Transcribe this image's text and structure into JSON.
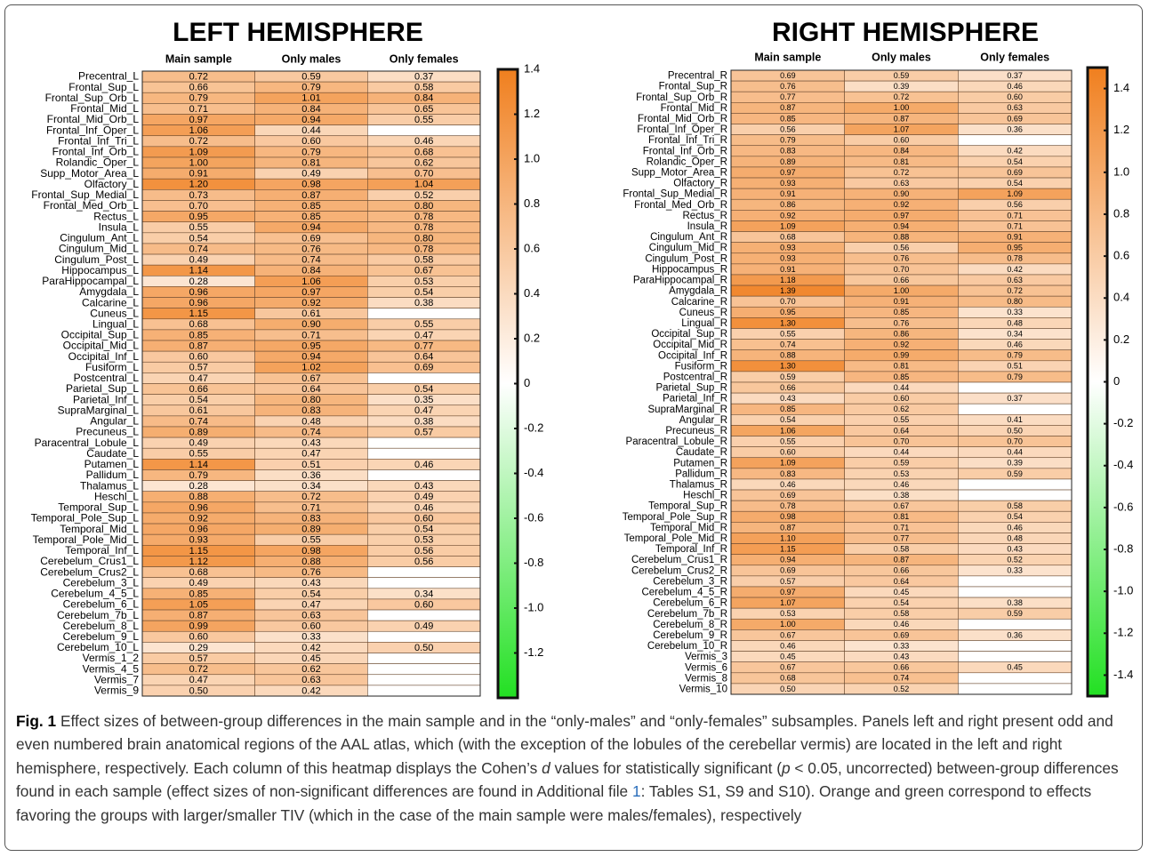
{
  "chart_data": [
    {
      "type": "heatmap",
      "title": "LEFT HEMISPHERE",
      "rows": [
        "Precentral_L",
        "Frontal_Sup_L",
        "Frontal_Sup_Orb_L",
        "Frontal_Mid_L",
        "Frontal_Mid_Orb_L",
        "Frontal_Inf_Oper_L",
        "Frontal_Inf_Tri_L",
        "Frontal_Inf_Orb_L",
        "Rolandic_Oper_L",
        "Supp_Motor_Area_L",
        "Olfactory_L",
        "Frontal_Sup_Medial_L",
        "Frontal_Med_Orb_L",
        "Rectus_L",
        "Insula_L",
        "Cingulum_Ant_L",
        "Cingulum_Mid_L",
        "Cingulum_Post_L",
        "Hippocampus_L",
        "ParaHippocampal_L",
        "Amygdala_L",
        "Calcarine_L",
        "Cuneus_L",
        "Lingual_L",
        "Occipital_Sup_L",
        "Occipital_Mid_L",
        "Occipital_Inf_L",
        "Fusiform_L",
        "Postcentral_L",
        "Parietal_Sup_L",
        "Parietal_Inf_L",
        "SupraMarginal_L",
        "Angular_L",
        "Precuneus_L",
        "Paracentral_Lobule_L",
        "Caudate_L",
        "Putamen_L",
        "Pallidum_L",
        "Thalamus_L",
        "Heschl_L",
        "Temporal_Sup_L",
        "Temporal_Pole_Sup_L",
        "Temporal_Mid_L",
        "Temporal_Pole_Mid_L",
        "Temporal_Inf_L",
        "Cerebelum_Crus1_L",
        "Cerebelum_Crus2_L",
        "Cerebelum_3_L",
        "Cerebelum_4_5_L",
        "Cerebelum_6_L",
        "Cerebelum_7b_L",
        "Cerebelum_8_L",
        "Cerebelum_9_L",
        "Cerebelum_10_L",
        "Vermis_1_2",
        "Vermis_4_5",
        "Vermis_7",
        "Vermis_9"
      ],
      "series": [
        {
          "name": "Main sample",
          "values": [
            0.72,
            0.66,
            0.79,
            0.71,
            0.97,
            1.06,
            0.72,
            1.09,
            1.0,
            0.91,
            1.2,
            0.73,
            0.7,
            0.95,
            0.55,
            0.54,
            0.74,
            0.49,
            1.14,
            0.28,
            0.96,
            0.96,
            1.15,
            0.68,
            0.85,
            0.87,
            0.6,
            0.57,
            0.47,
            0.66,
            0.54,
            0.61,
            0.74,
            0.89,
            0.49,
            0.55,
            1.14,
            0.79,
            0.28,
            0.88,
            0.96,
            0.92,
            0.96,
            0.93,
            1.15,
            1.12,
            0.68,
            0.49,
            0.85,
            1.05,
            0.87,
            0.99,
            0.6,
            0.29,
            0.57,
            0.72,
            0.47,
            0.5
          ],
          "value_labels": [
            "0.72",
            "0.66",
            "0.79",
            "0.71",
            "0.97",
            "1.06",
            "0.72",
            "1.09",
            "1.00",
            "0.91",
            "1.20",
            "0.73",
            "0.70",
            "0.95",
            "0.55",
            "0.54",
            "0.74",
            "0.49",
            "1.14",
            "0.28",
            "0.96",
            "0.96",
            "1.15",
            "0.68",
            "0.85",
            "0.87",
            "0.60",
            "0.57",
            "0.47",
            "0.66",
            "0.54",
            "0.61",
            "0.74",
            "0.89",
            "0.49",
            "0.55",
            "1.14",
            "0.79",
            "0.28",
            "0.88",
            "0.96",
            "0.92",
            "0.96",
            "0.93",
            "1.15",
            "1.12",
            "0.68",
            "0.49",
            "0.85",
            "1.05",
            "0.87",
            "0.99",
            "0.60",
            "0.29",
            "0.57",
            "0.72",
            "0.47",
            "0.50"
          ]
        },
        {
          "name": "Only males",
          "values": [
            0.59,
            0.79,
            1.01,
            0.84,
            0.94,
            0.44,
            0.6,
            0.79,
            0.81,
            0.49,
            0.98,
            0.87,
            0.85,
            0.85,
            0.94,
            0.69,
            0.76,
            0.74,
            0.84,
            1.06,
            0.97,
            0.92,
            0.61,
            0.9,
            0.71,
            0.95,
            0.94,
            1.02,
            0.67,
            0.64,
            0.8,
            0.83,
            0.48,
            0.74,
            0.43,
            0.47,
            0.51,
            0.36,
            0.34,
            0.72,
            0.71,
            0.83,
            0.89,
            0.55,
            0.98,
            0.88,
            0.76,
            0.43,
            0.54,
            0.47,
            0.63,
            0.6,
            0.33,
            0.42,
            0.45,
            0.62,
            0.63,
            0.42
          ],
          "value_labels": [
            "0.59",
            "0.79",
            "1.01",
            "0.84",
            "0.94",
            "0.44",
            "0.60",
            "0.79",
            "0.81",
            "0.49",
            "0.98",
            "0.87",
            "0.85",
            "0.85",
            "0.94",
            "0.69",
            "0.76",
            "0.74",
            "0.84",
            "1.06",
            "0.97",
            "0.92",
            "0.61",
            "0.90",
            "0.71",
            "0.95",
            "0.94",
            "1.02",
            "0.67",
            "0.64",
            "0.80",
            "0.83",
            "0.48",
            "0.74",
            "0.43",
            "0.47",
            "0.51",
            "0.36",
            "0.34",
            "0.72",
            "0.71",
            "0.83",
            "0.89",
            "0.55",
            "0.98",
            "0.88",
            "0.76",
            "0.43",
            "0.54",
            "0.47",
            "0.63",
            "0.60",
            "0.33",
            "0.42",
            "0.45",
            "0.62",
            "0.63",
            "0.42"
          ]
        },
        {
          "name": "Only females",
          "values": [
            0.37,
            0.58,
            0.84,
            0.65,
            0.55,
            null,
            0.46,
            0.68,
            0.62,
            0.7,
            1.04,
            0.52,
            0.8,
            0.78,
            0.78,
            0.8,
            0.78,
            0.58,
            0.67,
            0.53,
            0.54,
            0.38,
            null,
            0.55,
            0.47,
            0.77,
            0.64,
            0.69,
            null,
            0.54,
            0.35,
            0.47,
            0.38,
            0.57,
            null,
            null,
            0.46,
            null,
            0.43,
            0.49,
            0.46,
            0.6,
            0.54,
            0.53,
            0.56,
            0.56,
            null,
            null,
            0.34,
            0.6,
            null,
            0.49,
            null,
            0.5,
            null,
            null,
            null,
            null
          ],
          "value_labels": [
            "0.37",
            "0.58",
            "0.84",
            "0.65",
            "0.55",
            null,
            "0.46",
            "0.68",
            "0.62",
            "0.70",
            "1.04",
            "0.52",
            "0.80",
            "0.78",
            "0.78",
            "0.80",
            "0.78",
            "0.58",
            "0.67",
            "0.53",
            "0.54",
            "0.38",
            null,
            "0.55",
            "0.47",
            "0.77",
            "0.64",
            "0.69",
            null,
            "0.54",
            "0.35",
            "0.47",
            "0.38",
            "0.57",
            null,
            null,
            "0.46",
            null,
            "0.43",
            "0.49",
            "0.46",
            "0.60",
            "0.54",
            "0.53",
            "0.56",
            "0.56",
            null,
            null,
            "0.34",
            "0.60",
            null,
            "0.49",
            null,
            "0.50",
            null,
            null,
            null,
            null
          ]
        }
      ],
      "clim": [
        -1.4,
        1.4
      ],
      "colorbar_ticks": [
        1.4,
        1.2,
        {
          "value": 1,
          "label": "1.0"
        },
        0.8,
        0.6,
        0.4,
        0.2,
        0,
        -0.2,
        -0.4,
        -0.6,
        -0.8,
        {
          "value": -1,
          "label": "-1.0"
        },
        -1.2
      ],
      "colormap": [
        "#22e022",
        "#ffffff",
        "#f07f1e"
      ]
    },
    {
      "type": "heatmap",
      "title": "RIGHT HEMISPHERE",
      "rows": [
        "Precentral_R",
        "Frontal_Sup_R",
        "Frontal_Sup_Orb_R",
        "Frontal_Mid_R",
        "Frontal_Mid_Orb_R",
        "Frontal_Inf_Oper_R",
        "Frontal_Inf_Tri_R",
        "Frontal_Inf_Orb_R",
        "Rolandic_Oper_R",
        "Supp_Motor_Area_R",
        "Olfactory_R",
        "Frontal_Sup_Medial_R",
        "Frontal_Med_Orb_R",
        "Rectus_R",
        "Insula_R",
        "Cingulum_Ant_R",
        "Cingulum_Mid_R",
        "Cingulum_Post_R",
        "Hippocampus_R",
        "ParaHippocampal_R",
        "Amygdala_R",
        "Calcarine_R",
        "Cuneus_R",
        "Lingual_R",
        "Occipital_Sup_R",
        "Occipital_Mid_R",
        "Occipital_Inf_R",
        "Fusiform_R",
        "Postcentral_R",
        "Parietal_Sup_R",
        "Parietal_Inf_R",
        "SupraMarginal_R",
        "Angular_R",
        "Precuneus_R",
        "Paracentral_Lobule_R",
        "Caudate_R",
        "Putamen_R",
        "Pallidum_R",
        "Thalamus_R",
        "Heschl_R",
        "Temporal_Sup_R",
        "Temporal_Pole_Sup_R",
        "Temporal_Mid_R",
        "Temporal_Pole_Mid_R",
        "Temporal_Inf_R",
        "Cerebelum_Crus1_R",
        "Cerebelum_Crus2_R",
        "Cerebelum_3_R",
        "Cerebelum_4_5_R",
        "Cerebelum_6_R",
        "Cerebelum_7b_R",
        "Cerebelum_8_R",
        "Cerebelum_9_R",
        "Cerebelum_10_R",
        "Vermis_3",
        "Vermis_6",
        "Vermis_8",
        "Vermis_10"
      ],
      "series": [
        {
          "name": "Main sample",
          "values": [
            0.69,
            0.76,
            0.77,
            0.87,
            0.85,
            0.56,
            0.79,
            0.83,
            0.89,
            0.97,
            0.93,
            0.91,
            0.86,
            0.92,
            1.09,
            0.68,
            0.93,
            0.93,
            0.91,
            1.18,
            1.39,
            0.7,
            0.95,
            1.3,
            0.55,
            0.74,
            0.88,
            1.3,
            0.59,
            0.66,
            0.43,
            0.85,
            0.54,
            1.06,
            0.55,
            0.6,
            1.09,
            0.83,
            0.46,
            0.69,
            0.78,
            0.98,
            0.87,
            1.1,
            1.15,
            0.94,
            0.69,
            0.57,
            0.97,
            1.07,
            0.53,
            1.0,
            0.67,
            0.46,
            0.45,
            0.67,
            0.68,
            0.5
          ],
          "value_labels": [
            "0.69",
            "0.76",
            "0.77",
            "0.87",
            "0.85",
            "0.56",
            "0.79",
            "0.83",
            "0.89",
            "0.97",
            "0.93",
            "0.91",
            "0.86",
            "0.92",
            "1.09",
            "0.68",
            "0.93",
            "0.93",
            "0.91",
            "1.18",
            "1.39",
            "0.70",
            "0.95",
            "1.30",
            "0.55",
            "0.74",
            "0.88",
            "1.30",
            "0.59",
            "0.66",
            "0.43",
            "0.85",
            "0.54",
            "1.06",
            "0.55",
            "0.60",
            "1.09",
            "0.83",
            "0.46",
            "0.69",
            "0.78",
            "0.98",
            "0.87",
            "1.10",
            "1.15",
            "0.94",
            "0.69",
            "0.57",
            "0.97",
            "1.07",
            "0.53",
            "1.00",
            "0.67",
            "0.46",
            "0.45",
            "0.67",
            "0.68",
            "0.50"
          ]
        },
        {
          "name": "Only males",
          "values": [
            0.59,
            0.39,
            0.72,
            1.0,
            0.87,
            1.07,
            0.6,
            0.84,
            0.81,
            0.72,
            0.63,
            0.9,
            0.92,
            0.97,
            0.94,
            0.88,
            0.56,
            0.76,
            0.7,
            0.66,
            1.0,
            0.91,
            0.85,
            0.76,
            0.86,
            0.92,
            0.99,
            0.81,
            0.85,
            0.44,
            0.6,
            0.62,
            0.55,
            0.64,
            0.7,
            0.44,
            0.59,
            0.53,
            0.46,
            0.38,
            0.67,
            0.81,
            0.71,
            0.77,
            0.58,
            0.87,
            0.66,
            0.64,
            0.45,
            0.54,
            0.58,
            0.46,
            0.69,
            0.33,
            0.43,
            0.66,
            0.74,
            0.52
          ],
          "value_labels": [
            "0.59",
            "0.39",
            "0.72",
            "1.00",
            "0.87",
            "1.07",
            "0.60",
            "0.84",
            "0.81",
            "0.72",
            "0.63",
            "0.90",
            "0.92",
            "0.97",
            "0.94",
            "0.88",
            "0.56",
            "0.76",
            "0.70",
            "0.66",
            "1.00",
            "0.91",
            "0.85",
            "0.76",
            "0.86",
            "0.92",
            "0.99",
            "0.81",
            "0.85",
            "0.44",
            "0.60",
            "0.62",
            "0.55",
            "0.64",
            "0.70",
            "0.44",
            "0.59",
            "0.53",
            "0.46",
            "0.38",
            "0.67",
            "0.81",
            "0.71",
            "0.77",
            "0.58",
            "0.87",
            "0.66",
            "0.64",
            "0.45",
            "0.54",
            "0.58",
            "0.46",
            "0.69",
            "0.33",
            "0.43",
            "0.66",
            "0.74",
            "0.52"
          ]
        },
        {
          "name": "Only females",
          "values": [
            0.37,
            0.46,
            0.6,
            0.63,
            0.69,
            0.36,
            null,
            0.42,
            0.54,
            0.69,
            0.54,
            1.09,
            0.56,
            0.71,
            0.71,
            0.91,
            0.95,
            0.78,
            0.42,
            0.63,
            0.72,
            0.8,
            0.33,
            0.48,
            0.34,
            0.46,
            0.79,
            0.51,
            0.79,
            null,
            0.37,
            null,
            0.41,
            0.5,
            0.7,
            0.44,
            0.39,
            0.59,
            null,
            null,
            0.58,
            0.54,
            0.46,
            0.48,
            0.43,
            0.52,
            0.33,
            null,
            null,
            0.38,
            0.59,
            null,
            0.36,
            null,
            null,
            0.45,
            null,
            null
          ],
          "value_labels": [
            "0.37",
            "0.46",
            "0.60",
            "0.63",
            "0.69",
            "0.36",
            null,
            "0.42",
            "0.54",
            "0.69",
            "0.54",
            "1.09",
            "0.56",
            "0.71",
            "0.71",
            "0.91",
            "0.95",
            "0.78",
            "0.42",
            "0.63",
            "0.72",
            "0.80",
            "0.33",
            "0.48",
            "0.34",
            "0.46",
            "0.79",
            "0.51",
            "0.79",
            null,
            "0.37",
            null,
            "0.41",
            "0.50",
            "0.70",
            "0.44",
            "0.39",
            "0.59",
            null,
            null,
            "0.58",
            "0.54",
            "0.46",
            "0.48",
            "0.43",
            "0.52",
            "0.33",
            null,
            null,
            "0.38",
            "0.59",
            null,
            "0.36",
            null,
            null,
            "0.45",
            null,
            null
          ]
        }
      ],
      "clim": [
        -1.5,
        1.5
      ],
      "colorbar_ticks": [
        1.4,
        1.2,
        {
          "value": 1,
          "label": "1.0"
        },
        0.8,
        0.6,
        0.4,
        0.2,
        0,
        -0.2,
        -0.4,
        -0.6,
        -0.8,
        {
          "value": -1,
          "label": "-1.0"
        },
        -1.2,
        -1.4
      ],
      "colormap": [
        "#22e022",
        "#ffffff",
        "#f07f1e"
      ]
    }
  ],
  "caption": {
    "label": "Fig. 1",
    "text": [
      "Effect sizes of between-group differences in the main sample and in the “only-males” and “only-females” subsamples. Panels left and right present odd and even numbered brain anatomical regions of the AAL atlas, which (with the exception of the lobules of the cerebellar vermis) are located in the left and right hemisphere, respectively. Each column of this heatmap displays the Cohen’s ",
      "d",
      " values for statistically significant (",
      "p",
      " < 0.05, uncorrected) between-group differences found in each sample (effect sizes of non-significant differences are found in Additional file ",
      "1",
      ": Tables S1, S9 and S10). Orange and green correspond to effects favoring the groups with larger/smaller TIV (which in the case of the main sample were males/females), respectively"
    ]
  }
}
